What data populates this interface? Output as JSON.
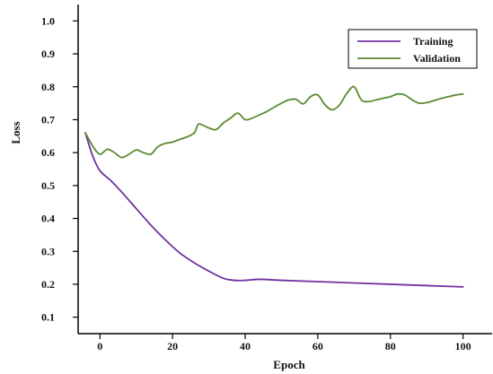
{
  "chart_data": {
    "type": "line",
    "title": "",
    "xlabel": "Epoch",
    "ylabel": "Loss",
    "xlim": [
      -6,
      108
    ],
    "ylim": [
      0.05,
      1.05
    ],
    "xticks": [
      0,
      20,
      40,
      60,
      80,
      100
    ],
    "yticks": [
      0.1,
      0.2,
      0.3,
      0.4,
      0.5,
      0.6,
      0.7,
      0.8,
      0.9,
      1.0
    ],
    "ytick_labels": [
      "0.1",
      "0.2",
      "0.3",
      "0.4",
      "0.5",
      "0.6",
      "0.7",
      "0.8",
      "0.9",
      "1.0"
    ],
    "grid": false,
    "legend_position": "top-right",
    "series": [
      {
        "name": "Training",
        "color": "#7030a0",
        "x": [
          -4,
          -2,
          0,
          3,
          6,
          10,
          14,
          18,
          22,
          26,
          30,
          34,
          37,
          40,
          44,
          50,
          60,
          70,
          80,
          90,
          100
        ],
        "y": [
          0.66,
          0.59,
          0.545,
          0.515,
          0.48,
          0.43,
          0.38,
          0.335,
          0.295,
          0.265,
          0.24,
          0.218,
          0.212,
          0.212,
          0.215,
          0.212,
          0.208,
          0.204,
          0.2,
          0.196,
          0.192
        ]
      },
      {
        "name": "Validation",
        "color": "#5a8a32",
        "x": [
          -4,
          -2,
          0,
          2,
          4,
          6,
          8,
          10,
          12,
          14,
          16,
          18,
          20,
          22,
          24,
          26,
          27,
          28,
          30,
          32,
          34,
          36,
          38,
          40,
          42,
          44,
          46,
          48,
          50,
          52,
          54,
          56,
          58,
          60,
          62,
          64,
          66,
          68,
          70,
          72,
          74,
          76,
          78,
          80,
          82,
          84,
          86,
          88,
          90,
          92,
          94,
          96,
          98,
          100
        ],
        "y": [
          0.66,
          0.62,
          0.595,
          0.61,
          0.6,
          0.585,
          0.595,
          0.608,
          0.6,
          0.595,
          0.618,
          0.628,
          0.632,
          0.64,
          0.648,
          0.66,
          0.685,
          0.685,
          0.675,
          0.67,
          0.69,
          0.705,
          0.72,
          0.7,
          0.705,
          0.715,
          0.725,
          0.738,
          0.75,
          0.76,
          0.762,
          0.748,
          0.77,
          0.775,
          0.745,
          0.73,
          0.745,
          0.78,
          0.8,
          0.76,
          0.755,
          0.76,
          0.765,
          0.77,
          0.778,
          0.775,
          0.76,
          0.75,
          0.752,
          0.758,
          0.765,
          0.77,
          0.775,
          0.778
        ]
      }
    ]
  }
}
